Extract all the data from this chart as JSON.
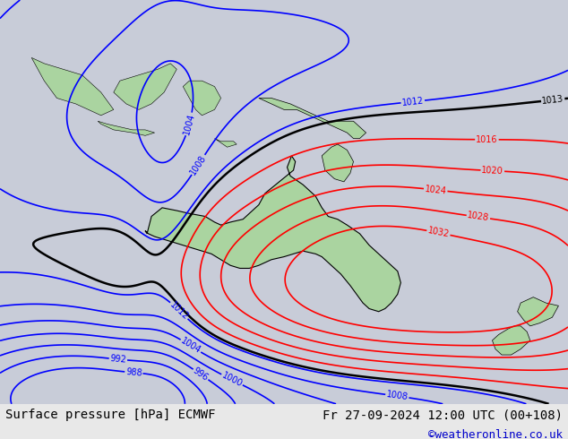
{
  "title_left": "Surface pressure [hPa] ECMWF",
  "title_right": "Fr 27-09-2024 12:00 UTC (00+108)",
  "copyright": "©weatheronline.co.uk",
  "bg_color": "#c8ccd8",
  "land_color": "#aad4a0",
  "ocean_color": "#c8ccd8",
  "figsize": [
    6.34,
    4.9
  ],
  "dpi": 100,
  "text_color_left": "#000000",
  "text_color_right": "#000000",
  "text_color_copyright": "#0000cc",
  "font_size_title": 10,
  "font_size_copyright": 9,
  "map_bounds": [
    90,
    180,
    -55,
    15
  ]
}
